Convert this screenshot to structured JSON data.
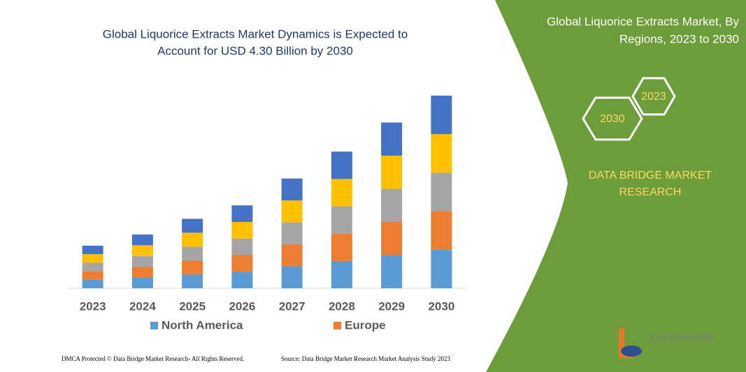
{
  "chart_data": {
    "type": "stacked-bar",
    "title": [
      "Global Liquorice Extracts Market Dynamics is Expected to",
      "Account for USD 4.30 Billion by 2030"
    ],
    "categories": [
      "2023",
      "2024",
      "2025",
      "2026",
      "2027",
      "2028",
      "2029",
      "2030"
    ],
    "series": [
      {
        "name": "North America",
        "color": "#5b9bd5",
        "values": [
          0.19,
          0.24,
          0.31,
          0.37,
          0.49,
          0.61,
          0.74,
          0.86
        ]
      },
      {
        "name": "Europe",
        "color": "#ed7d31",
        "values": [
          0.19,
          0.24,
          0.31,
          0.37,
          0.49,
          0.61,
          0.74,
          0.86
        ]
      },
      {
        "color": "#a5a5a5",
        "values": [
          0.19,
          0.24,
          0.31,
          0.37,
          0.49,
          0.61,
          0.74,
          0.86
        ]
      },
      {
        "color": "#ffc000",
        "values": [
          0.19,
          0.24,
          0.31,
          0.37,
          0.49,
          0.61,
          0.74,
          0.86
        ]
      },
      {
        "color": "#4472c4",
        "values": [
          0.19,
          0.24,
          0.31,
          0.37,
          0.49,
          0.61,
          0.74,
          0.86
        ]
      }
    ],
    "ylim": [
      0,
      4.3
    ],
    "grid": false,
    "legend": "bottom"
  },
  "panel": {
    "title": [
      "Global Liquorice Extracts Market, By",
      "Regions, 2023 to 2030"
    ],
    "hex_labels": [
      "2023",
      "2030"
    ],
    "brand": [
      "DATA BRIDGE MARKET",
      "RESEARCH"
    ],
    "logo": "DATA BRIDGE"
  },
  "footer": {
    "copyright": "DMCA Protected © Data Bridge Market Research-  All Rights Reserved.",
    "source": "Source: Data Bridge Market Research  Market Analysis Study 2023"
  }
}
